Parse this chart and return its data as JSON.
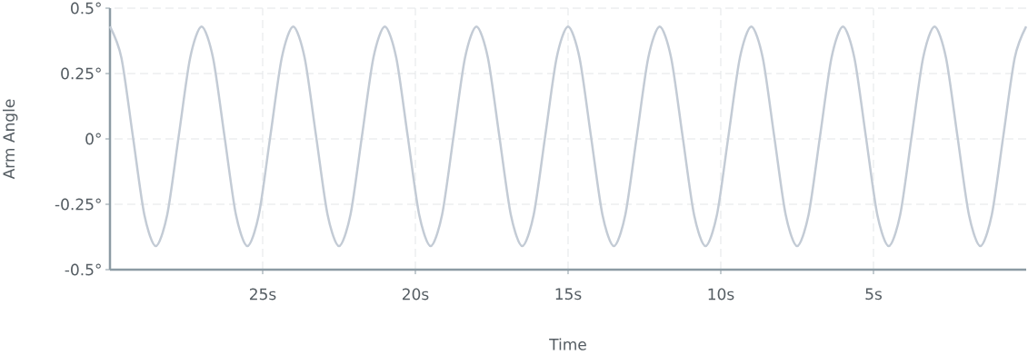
{
  "chart_data": {
    "type": "line",
    "xlabel": "Time",
    "ylabel": "Arm Angle",
    "color": "#c3cbd5",
    "xlim": [
      30,
      0
    ],
    "ylim": [
      -0.5,
      0.5
    ],
    "xticks": [
      {
        "value": 25,
        "label": "25s"
      },
      {
        "value": 20,
        "label": "20s"
      },
      {
        "value": 15,
        "label": "15s"
      },
      {
        "value": 10,
        "label": "10s"
      },
      {
        "value": 5,
        "label": "5s"
      }
    ],
    "yticks": [
      {
        "value": -0.5,
        "label": "-0.5°"
      },
      {
        "value": -0.25,
        "label": "-0.25°"
      },
      {
        "value": 0,
        "label": "0°"
      },
      {
        "value": 0.25,
        "label": "0.25°"
      },
      {
        "value": 0.5,
        "label": "0.5°"
      }
    ],
    "grid": true,
    "x": [
      30,
      29.625,
      29.25,
      28.875,
      28.5,
      28.125,
      27.75,
      27.375,
      27,
      26.625,
      26.25,
      25.875,
      25.5,
      25.125,
      24.75,
      24.375,
      24,
      23.625,
      23.25,
      22.875,
      22.5,
      22.125,
      21.75,
      21.375,
      21,
      20.625,
      20.25,
      19.875,
      19.5,
      19.125,
      18.75,
      18.375,
      18,
      17.625,
      17.25,
      16.875,
      16.5,
      16.125,
      15.75,
      15.375,
      15,
      14.625,
      14.25,
      13.875,
      13.5,
      13.125,
      12.75,
      12.375,
      12,
      11.625,
      11.25,
      10.875,
      10.5,
      10.125,
      9.75,
      9.375,
      9,
      8.625,
      8.25,
      7.875,
      7.5,
      7.125,
      6.75,
      6.375,
      6,
      5.625,
      5.25,
      4.875,
      4.5,
      4.125,
      3.75,
      3.375,
      3,
      2.625,
      2.25,
      1.875,
      1.5,
      1.125,
      0.75,
      0.375,
      0
    ],
    "values": [
      0.43,
      0.31,
      0.01,
      -0.29,
      -0.41,
      -0.29,
      0.01,
      0.31,
      0.43,
      0.31,
      0.01,
      -0.29,
      -0.41,
      -0.29,
      0.01,
      0.31,
      0.43,
      0.31,
      0.01,
      -0.29,
      -0.41,
      -0.29,
      0.01,
      0.31,
      0.43,
      0.31,
      0.01,
      -0.29,
      -0.41,
      -0.29,
      0.01,
      0.31,
      0.43,
      0.31,
      0.01,
      -0.29,
      -0.41,
      -0.29,
      0.01,
      0.31,
      0.43,
      0.31,
      0.01,
      -0.29,
      -0.41,
      -0.29,
      0.01,
      0.31,
      0.43,
      0.31,
      0.01,
      -0.29,
      -0.41,
      -0.29,
      0.01,
      0.31,
      0.43,
      0.31,
      0.01,
      -0.29,
      -0.41,
      -0.29,
      0.01,
      0.31,
      0.43,
      0.31,
      0.01,
      -0.29,
      -0.41,
      -0.29,
      0.01,
      0.31,
      0.43,
      0.31,
      0.01,
      -0.29,
      -0.41,
      -0.29,
      0.01,
      0.31,
      0.43
    ]
  }
}
